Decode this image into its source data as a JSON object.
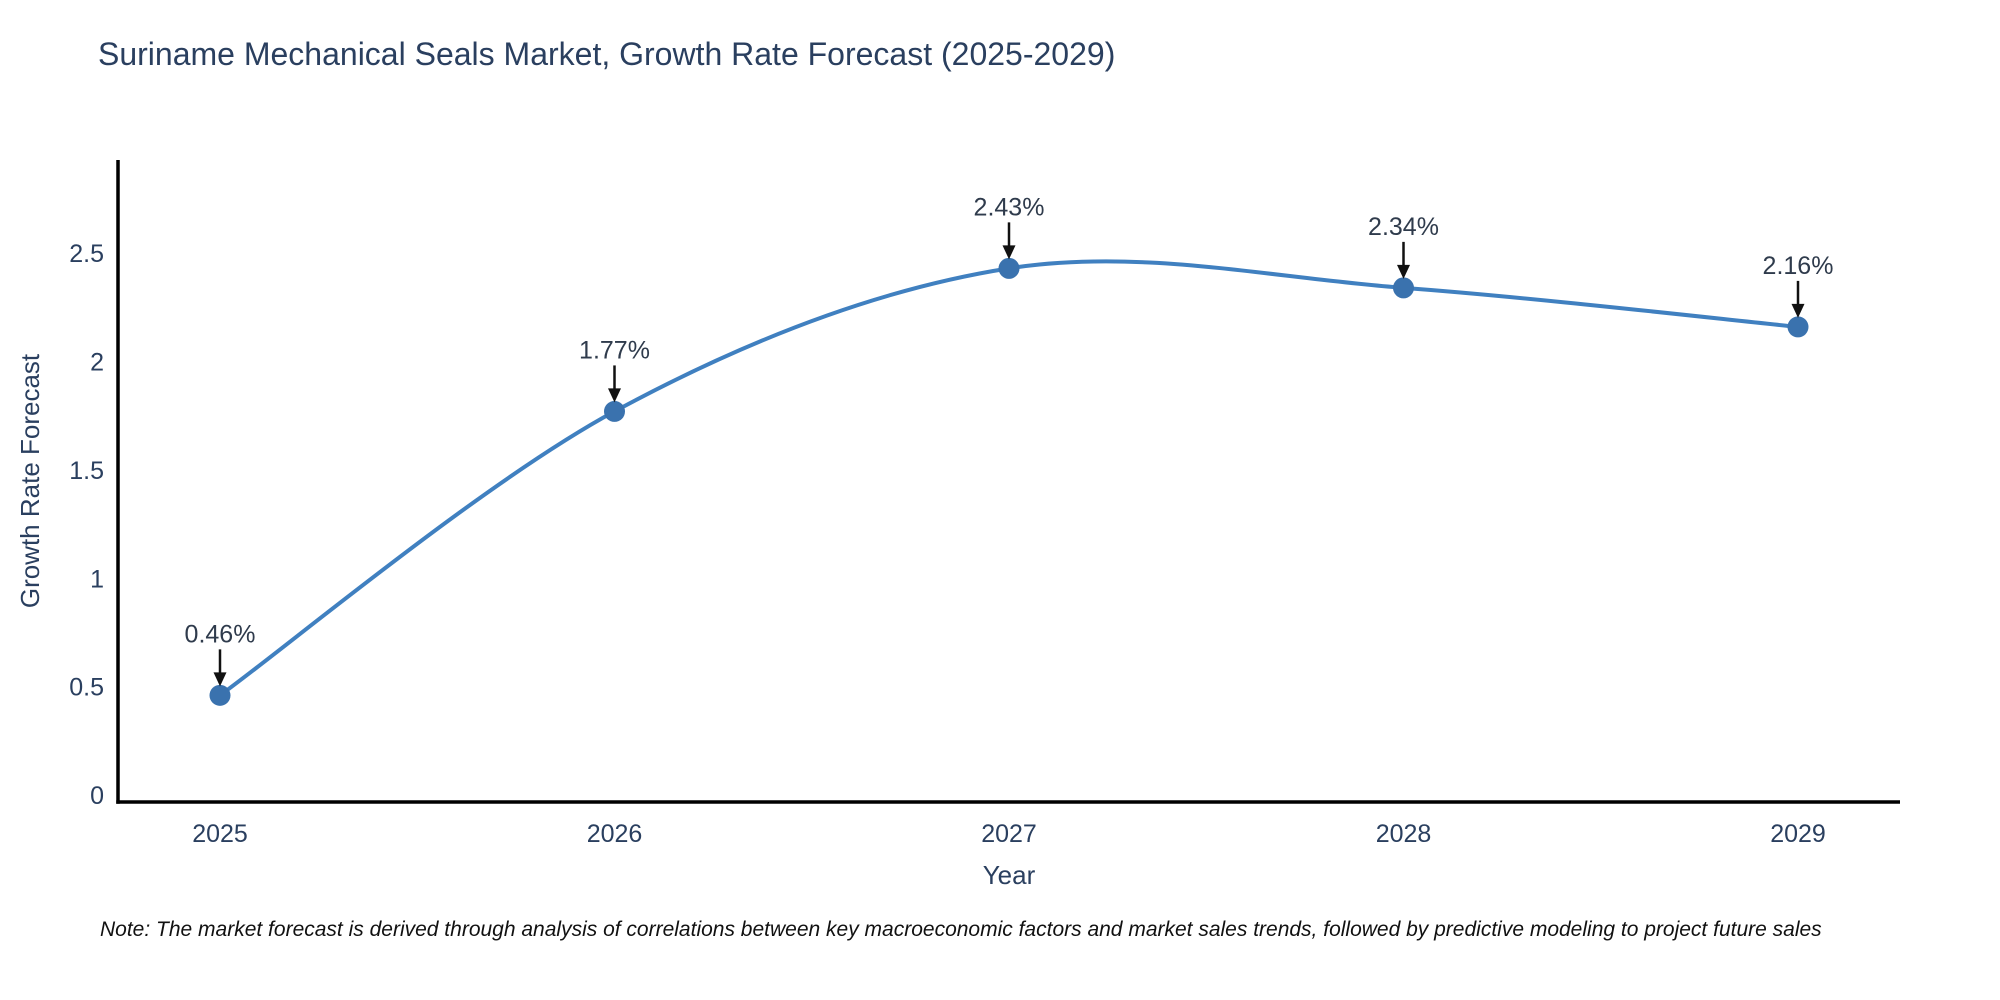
{
  "chart_data": {
    "type": "line",
    "title": "Suriname Mechanical Seals Market, Growth Rate Forecast (2025-2029)",
    "xlabel": "Year",
    "ylabel": "Growth Rate Forecast",
    "x": [
      2025,
      2026,
      2027,
      2028,
      2029
    ],
    "y": [
      0.46,
      1.77,
      2.43,
      2.34,
      2.16
    ],
    "point_labels": [
      "0.46%",
      "1.77%",
      "2.43%",
      "2.34%",
      "2.16%"
    ],
    "x_tick_labels": [
      "2025",
      "2026",
      "2027",
      "2028",
      "2029"
    ],
    "y_ticks": [
      0,
      0.5,
      1,
      1.5,
      2,
      2.5
    ],
    "y_tick_labels": [
      "0",
      "0.5",
      "1",
      "1.5",
      "2",
      "2.5"
    ],
    "ylim": [
      -0.032,
      2.93
    ],
    "grid": false,
    "legend_position": "none",
    "line_shape": "spline",
    "colors": {
      "line": "#4080c0",
      "marker": "#3a72ae",
      "axis_line": "#000000",
      "tick_text": "#2a3f5f",
      "title_text": "#2a3f5f",
      "annotation_text": "#2f3b4c",
      "annotation_arrow": "#111111",
      "background": "#ffffff"
    }
  },
  "footer": {
    "note": "Note: The market forecast is derived through analysis of correlations between key macroeconomic factors and market sales trends, followed by predictive modeling to project future sales"
  }
}
